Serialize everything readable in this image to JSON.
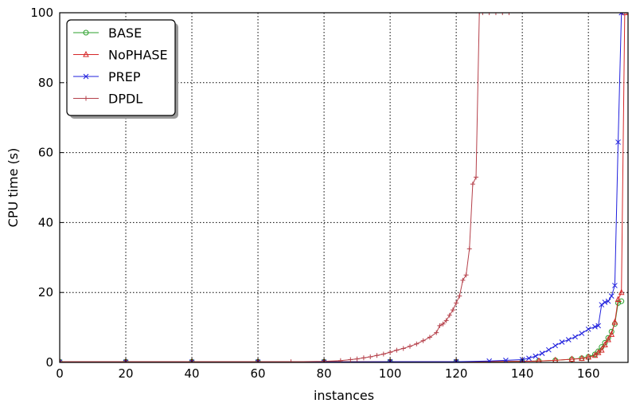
{
  "chart_data": {
    "type": "line",
    "xlabel": "instances",
    "ylabel": "CPU time (s)",
    "xlim": [
      0,
      172
    ],
    "ylim": [
      0,
      100
    ],
    "xticks": [
      0,
      20,
      40,
      60,
      80,
      100,
      120,
      140,
      160
    ],
    "yticks": [
      0,
      20,
      40,
      60,
      80,
      100
    ],
    "grid": true,
    "legend_position": "top-left",
    "series": [
      {
        "name": "BASE",
        "color": "#2ca02c",
        "marker": "circle",
        "x": [
          0,
          20,
          40,
          60,
          80,
          100,
          120,
          140,
          145,
          150,
          155,
          158,
          160,
          162,
          163,
          164,
          165,
          166,
          167,
          168,
          169,
          170
        ],
        "y": [
          0.2,
          0.2,
          0.2,
          0.2,
          0.2,
          0.2,
          0.2,
          0.3,
          0.4,
          0.6,
          0.9,
          1.2,
          1.6,
          2.3,
          3.2,
          4.4,
          5.6,
          7.0,
          8.8,
          11.0,
          17.0,
          17.5
        ]
      },
      {
        "name": "NoPHASE",
        "color": "#d62728",
        "marker": "triangle",
        "x": [
          0,
          20,
          40,
          60,
          80,
          100,
          120,
          140,
          145,
          150,
          155,
          158,
          160,
          162,
          163,
          164,
          165,
          166,
          167,
          168,
          169,
          170,
          171
        ],
        "y": [
          0.2,
          0.2,
          0.2,
          0.2,
          0.2,
          0.2,
          0.2,
          0.3,
          0.4,
          0.6,
          0.9,
          1.1,
          1.5,
          2.0,
          2.8,
          3.5,
          5.0,
          6.5,
          8.0,
          11.5,
          18.0,
          20.0,
          100
        ]
      },
      {
        "name": "PREP",
        "color": "#1f1fdd",
        "marker": "x",
        "x": [
          0,
          20,
          40,
          60,
          80,
          100,
          120,
          130,
          135,
          140,
          142,
          144,
          146,
          148,
          150,
          152,
          154,
          156,
          158,
          160,
          162,
          163,
          164,
          165,
          166,
          167,
          168,
          169,
          170
        ],
        "y": [
          0.1,
          0.1,
          0.1,
          0.1,
          0.1,
          0.2,
          0.2,
          0.4,
          0.6,
          0.8,
          1.2,
          1.8,
          2.6,
          3.6,
          4.8,
          5.8,
          6.5,
          7.3,
          8.3,
          9.5,
          10.2,
          10.5,
          16.5,
          17.2,
          17.5,
          19.0,
          22.0,
          63.0,
          100
        ]
      },
      {
        "name": "DPDL",
        "color": "#b5404a",
        "marker": "plus",
        "x": [
          0,
          20,
          40,
          60,
          70,
          80,
          85,
          88,
          90,
          92,
          94,
          96,
          98,
          100,
          102,
          104,
          106,
          108,
          110,
          112,
          114,
          115,
          116,
          117,
          118,
          119,
          120,
          121,
          122,
          123,
          124,
          125,
          126,
          127,
          128,
          130,
          132,
          134,
          136
        ],
        "y": [
          0.2,
          0.2,
          0.2,
          0.2,
          0.2,
          0.3,
          0.5,
          0.8,
          1.0,
          1.3,
          1.6,
          2.0,
          2.4,
          2.9,
          3.5,
          4.0,
          4.6,
          5.3,
          6.2,
          7.2,
          8.5,
          10.5,
          11.0,
          12.0,
          13.5,
          15.0,
          17.0,
          19.0,
          23.5,
          25.0,
          32.5,
          51.0,
          53.0,
          100,
          100,
          100,
          100,
          100,
          100
        ]
      }
    ]
  }
}
